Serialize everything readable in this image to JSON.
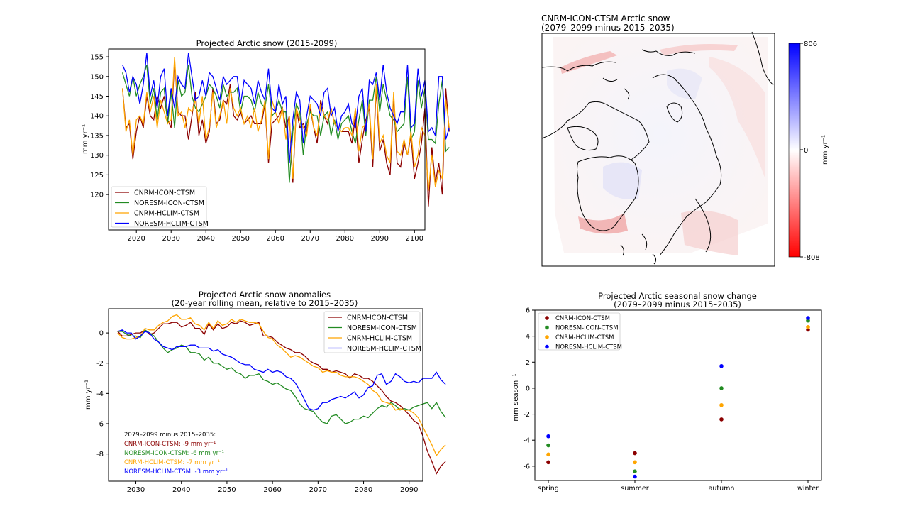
{
  "colors": {
    "CNRM-ICON-CTSM": "#8b0000",
    "NORESM-ICON-CTSM": "#228b22",
    "CNRM-HCLIM-CTSM": "#ffa500",
    "NORESM-HCLIM-CTSM": "#0000ff"
  },
  "chart_data": [
    {
      "type": "line",
      "title": "Projected Arctic snow (2015-2099)",
      "xlabel": "",
      "ylabel": "mm yr⁻¹",
      "xlim": [
        2012,
        2103
      ],
      "ylim": [
        111,
        157
      ],
      "xticks": [
        2020,
        2030,
        2040,
        2050,
        2060,
        2070,
        2080,
        2090,
        2100
      ],
      "yticks": [
        120,
        125,
        130,
        135,
        140,
        145,
        150,
        155
      ],
      "legend_placement": "lower-left",
      "x_start": 2016,
      "series": [
        {
          "name": "CNRM-ICON-CTSM",
          "values": [
            147,
            137,
            138,
            129,
            136,
            140,
            137,
            145,
            140,
            139,
            145,
            142,
            145,
            139,
            137,
            154,
            141,
            140,
            140,
            134,
            140,
            146,
            135,
            139,
            133,
            136,
            147,
            138,
            139,
            144,
            143,
            148,
            140,
            139,
            141,
            138,
            139,
            140,
            138,
            138,
            138,
            143,
            128,
            138,
            139,
            140,
            142,
            137,
            140,
            123,
            142,
            137,
            138,
            136,
            142,
            137,
            133,
            144,
            140,
            138,
            142,
            138,
            137,
            136,
            136,
            136,
            133,
            140,
            128,
            134,
            139,
            142,
            127,
            147,
            131,
            134,
            128,
            125,
            145,
            128,
            127,
            133,
            130,
            135,
            124,
            128,
            133,
            142,
            117,
            132,
            123,
            128,
            120,
            147,
            136
          ]
        },
        {
          "name": "NORESM-ICON-CTSM",
          "values": [
            151,
            148,
            145,
            150,
            145,
            148,
            150,
            153,
            143,
            147,
            139,
            146,
            147,
            138,
            146,
            137,
            149,
            145,
            146,
            153,
            145,
            142,
            141,
            143,
            145,
            148,
            147,
            145,
            142,
            148,
            145,
            146,
            146,
            147,
            141,
            145,
            145,
            144,
            141,
            146,
            143,
            142,
            148,
            140,
            141,
            144,
            141,
            141,
            123,
            136,
            143,
            141,
            130,
            138,
            141,
            140,
            140,
            135,
            140,
            141,
            135,
            139,
            134,
            138,
            139,
            140,
            136,
            133,
            139,
            144,
            135,
            144,
            144,
            150,
            141,
            148,
            144,
            140,
            139,
            136,
            137,
            138,
            150,
            134,
            136,
            149,
            142,
            147,
            134,
            134,
            133,
            143,
            149,
            131,
            132
          ]
        },
        {
          "name": "CNRM-HCLIM-CTSM",
          "values": [
            147,
            136,
            139,
            130,
            139,
            140,
            138,
            146,
            141,
            145,
            137,
            144,
            141,
            138,
            139,
            155,
            140,
            141,
            137,
            142,
            141,
            144,
            138,
            145,
            134,
            137,
            146,
            137,
            140,
            144,
            138,
            147,
            142,
            140,
            142,
            138,
            140,
            137,
            142,
            136,
            139,
            144,
            129,
            144,
            141,
            138,
            142,
            134,
            140,
            124,
            142,
            139,
            137,
            135,
            143,
            137,
            135,
            143,
            140,
            139,
            142,
            138,
            137,
            136,
            137,
            137,
            135,
            142,
            131,
            137,
            138,
            143,
            129,
            148,
            133,
            135,
            130,
            128,
            146,
            131,
            130,
            134,
            130,
            136,
            127,
            130,
            137,
            135,
            121,
            130,
            122,
            126,
            124,
            144,
            137
          ]
        },
        {
          "name": "NORESM-HCLIM-CTSM",
          "values": [
            153,
            151,
            146,
            150,
            148,
            143,
            148,
            156,
            145,
            149,
            142,
            150,
            152,
            140,
            147,
            142,
            150,
            148,
            147,
            156,
            150,
            144,
            145,
            149,
            145,
            151,
            150,
            147,
            144,
            150,
            148,
            149,
            150,
            150,
            143,
            149,
            148,
            147,
            143,
            149,
            146,
            144,
            152,
            142,
            141,
            148,
            143,
            145,
            128,
            139,
            146,
            144,
            133,
            140,
            145,
            144,
            143,
            140,
            146,
            147,
            140,
            142,
            136,
            140,
            141,
            143,
            138,
            137,
            145,
            147,
            136,
            149,
            148,
            151,
            144,
            153,
            146,
            142,
            140,
            138,
            141,
            141,
            153,
            137,
            138,
            152,
            145,
            149,
            136,
            137,
            135,
            150,
            150,
            134,
            137
          ]
        }
      ]
    },
    {
      "type": "heatmap",
      "title": "CNRM-ICON-CTSM Arctic snow",
      "subtitle": "(2079–2099 minus 2015–2035)",
      "colorbar_label": "mm yr⁻¹",
      "colorbar_ticks": [
        "806",
        "0",
        "-808"
      ],
      "vmin": -808,
      "vmax": 806,
      "colormap": "bwr"
    },
    {
      "type": "line",
      "title": "Projected Arctic snow anomalies",
      "subtitle": "(20-year rolling mean, relative to 2015–2035)",
      "xlabel": "",
      "ylabel": "mm yr⁻¹",
      "xlim": [
        2024,
        2093
      ],
      "ylim": [
        -9.8,
        1.6
      ],
      "xticks": [
        2030,
        2040,
        2050,
        2060,
        2070,
        2080,
        2090
      ],
      "yticks": [
        -8,
        -6,
        -4,
        -2,
        0
      ],
      "legend_placement": "upper-right",
      "x_start": 2026,
      "series": [
        {
          "name": "CNRM-ICON-CTSM",
          "values": [
            0.1,
            -0.2,
            -0.2,
            -0.1,
            0.0,
            0.0,
            0.2,
            -0.1,
            0.0,
            0.3,
            0.6,
            0.6,
            0.7,
            0.7,
            0.4,
            0.5,
            0.7,
            0.3,
            0.3,
            -0.1,
            0.6,
            0.2,
            0.6,
            0.3,
            0.4,
            0.7,
            0.6,
            0.8,
            0.7,
            0.5,
            0.6,
            0.7,
            -0.2,
            -0.2,
            -0.3,
            -0.6,
            -0.8,
            -1.0,
            -1.1,
            -1.3,
            -1.3,
            -1.5,
            -1.8,
            -2.0,
            -2.1,
            -2.4,
            -2.4,
            -2.6,
            -2.5,
            -2.6,
            -2.7,
            -3.0,
            -2.7,
            -2.8,
            -3.0,
            -3.0,
            -3.2,
            -3.5,
            -3.8,
            -4.2,
            -4.5,
            -4.6,
            -4.8,
            -5.1,
            -5.4,
            -5.8,
            -6.0,
            -6.8,
            -7.8,
            -8.5,
            -9.3,
            -8.8,
            -8.5
          ]
        },
        {
          "name": "NORESM-ICON-CTSM",
          "values": [
            0.1,
            0.1,
            -0.1,
            -0.2,
            -0.2,
            -0.3,
            0.2,
            0.0,
            -0.2,
            -0.6,
            -1.0,
            -1.3,
            -1.1,
            -1.0,
            -0.8,
            -0.9,
            -1.3,
            -1.3,
            -1.4,
            -1.8,
            -1.6,
            -2.0,
            -2.0,
            -2.2,
            -2.4,
            -2.3,
            -2.6,
            -2.7,
            -3.0,
            -2.8,
            -2.8,
            -2.7,
            -3.1,
            -3.2,
            -3.4,
            -3.3,
            -3.5,
            -3.7,
            -3.8,
            -4.2,
            -4.7,
            -5.0,
            -5.1,
            -5.2,
            -5.6,
            -5.9,
            -6.0,
            -5.5,
            -5.4,
            -5.7,
            -6.0,
            -5.9,
            -5.7,
            -5.7,
            -5.5,
            -5.6,
            -5.3,
            -5.0,
            -4.8,
            -4.9,
            -4.6,
            -4.8,
            -5.1,
            -5.0,
            -5.1,
            -4.9,
            -4.8,
            -4.7,
            -4.6,
            -5.0,
            -4.6,
            -5.2,
            -5.6
          ]
        },
        {
          "name": "CNRM-HCLIM-CTSM",
          "values": [
            0.0,
            -0.3,
            -0.4,
            -0.4,
            -0.3,
            -0.2,
            0.3,
            0.2,
            0.2,
            0.5,
            0.7,
            0.8,
            1.1,
            1.2,
            0.9,
            0.9,
            1.0,
            0.6,
            0.5,
            0.2,
            0.7,
            0.3,
            0.8,
            0.5,
            0.6,
            0.9,
            0.7,
            0.9,
            0.8,
            0.7,
            0.7,
            0.6,
            0.1,
            -0.3,
            -0.4,
            -0.8,
            -1.0,
            -1.3,
            -1.6,
            -1.5,
            -1.6,
            -1.8,
            -2.0,
            -2.2,
            -2.3,
            -2.6,
            -2.5,
            -2.6,
            -2.6,
            -2.8,
            -2.9,
            -2.9,
            -2.9,
            -3.0,
            -3.2,
            -3.4,
            -3.8,
            -4.0,
            -4.5,
            -4.6,
            -4.7,
            -5.1,
            -5.0,
            -5.1,
            -5.1,
            -5.3,
            -5.6,
            -6.2,
            -6.8,
            -7.4,
            -8.1,
            -7.7,
            -7.4
          ]
        },
        {
          "name": "NORESM-HCLIM-CTSM",
          "values": [
            0.1,
            0.2,
            0.0,
            0.0,
            -0.4,
            -0.2,
            0.1,
            0.0,
            -0.4,
            -0.6,
            -0.9,
            -1.0,
            -1.1,
            -0.9,
            -0.9,
            -0.9,
            -0.8,
            -0.8,
            -1.0,
            -1.0,
            -1.0,
            -1.2,
            -1.1,
            -1.4,
            -1.5,
            -1.6,
            -1.8,
            -2.0,
            -2.1,
            -2.1,
            -2.4,
            -2.5,
            -2.6,
            -2.4,
            -2.6,
            -2.5,
            -2.6,
            -2.9,
            -3.0,
            -3.3,
            -3.8,
            -4.4,
            -5.0,
            -5.1,
            -5.0,
            -4.6,
            -4.6,
            -4.4,
            -4.3,
            -4.2,
            -4.3,
            -4.1,
            -3.9,
            -4.3,
            -4.1,
            -3.6,
            -3.5,
            -2.8,
            -2.7,
            -3.4,
            -3.2,
            -2.7,
            -2.9,
            -3.2,
            -3.3,
            -3.2,
            -3.3,
            -3.0,
            -3.0,
            -3.0,
            -2.6,
            -3.1,
            -3.4
          ]
        }
      ],
      "annotations": [
        {
          "text": "2079–2099 minus 2015–2035:",
          "color": "#000000"
        },
        {
          "text": "CNRM-ICON-CTSM: -9 mm yr⁻¹",
          "series": "CNRM-ICON-CTSM"
        },
        {
          "text": "NORESM-ICON-CTSM: -6 mm yr⁻¹",
          "series": "NORESM-ICON-CTSM"
        },
        {
          "text": "CNRM-HCLIM-CTSM: -7 mm yr⁻¹",
          "series": "CNRM-HCLIM-CTSM"
        },
        {
          "text": "NORESM-HCLIM-CTSM: -3 mm yr⁻¹",
          "series": "NORESM-HCLIM-CTSM"
        }
      ]
    },
    {
      "type": "scatter",
      "title": "Projected Arctic seasonal snow change",
      "subtitle": "(2079–2099 minus 2015–2035)",
      "xlabel": "",
      "ylabel": "mm season⁻¹",
      "categories": [
        "spring",
        "summer",
        "autumn",
        "winter"
      ],
      "ylim": [
        -7.1,
        6.0
      ],
      "yticks": [
        -6,
        -4,
        -2,
        0,
        2,
        4,
        6
      ],
      "legend_placement": "upper-left",
      "series": [
        {
          "name": "CNRM-ICON-CTSM",
          "values": [
            -5.7,
            -5.0,
            -2.4,
            4.5
          ]
        },
        {
          "name": "NORESM-ICON-CTSM",
          "values": [
            -4.4,
            -6.4,
            0.0,
            5.2
          ]
        },
        {
          "name": "CNRM-HCLIM-CTSM",
          "values": [
            -5.1,
            -5.7,
            -1.3,
            4.7
          ]
        },
        {
          "name": "NORESM-HCLIM-CTSM",
          "values": [
            -3.7,
            -6.8,
            1.7,
            5.4
          ]
        }
      ]
    }
  ]
}
